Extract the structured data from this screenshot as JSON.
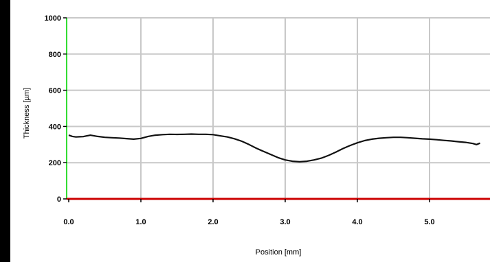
{
  "chart_data": {
    "type": "line",
    "title": "",
    "xlabel": "Position [mm]",
    "ylabel": "Thickness [µm]",
    "xlim": [
      -0.05,
      5.75
    ],
    "ylim": [
      0,
      1000
    ],
    "x_ticks": [
      0.0,
      1.0,
      2.0,
      3.0,
      4.0,
      5.0
    ],
    "x_tick_labels": [
      "0.0",
      "1.0",
      "2.0",
      "3.0",
      "4.0",
      "5.0"
    ],
    "y_ticks": [
      0,
      200,
      400,
      600,
      800,
      1000
    ],
    "y_tick_labels": [
      "0",
      "200",
      "400",
      "600",
      "800",
      "1000"
    ],
    "grid": true,
    "legend": "none",
    "colors": {
      "series": "#111111",
      "x_axis": "#cc0000",
      "y_axis": "#33dd33",
      "grid": "#c8c8c8",
      "plot_background": "#ffffff"
    },
    "series": [
      {
        "x": [
          0.0,
          0.05,
          0.1,
          0.15,
          0.2,
          0.25,
          0.3,
          0.4,
          0.5,
          0.6,
          0.7,
          0.8,
          0.9,
          1.0,
          1.1,
          1.2,
          1.3,
          1.4,
          1.5,
          1.6,
          1.7,
          1.8,
          1.9,
          2.0,
          2.1,
          2.2,
          2.3,
          2.4,
          2.5,
          2.6,
          2.7,
          2.8,
          2.9,
          3.0,
          3.1,
          3.2,
          3.3,
          3.4,
          3.5,
          3.6,
          3.7,
          3.8,
          3.9,
          4.0,
          4.1,
          4.2,
          4.3,
          4.4,
          4.5,
          4.6,
          4.7,
          4.8,
          4.9,
          5.0,
          5.1,
          5.2,
          5.3,
          5.4,
          5.5,
          5.6,
          5.65,
          5.7
        ],
        "values": [
          352,
          345,
          342,
          343,
          344,
          348,
          352,
          345,
          340,
          338,
          336,
          333,
          330,
          334,
          345,
          352,
          355,
          357,
          356,
          357,
          358,
          357,
          357,
          355,
          348,
          342,
          332,
          318,
          300,
          280,
          262,
          245,
          228,
          215,
          208,
          205,
          208,
          215,
          225,
          240,
          258,
          278,
          295,
          310,
          322,
          330,
          335,
          338,
          340,
          340,
          338,
          335,
          332,
          330,
          327,
          323,
          320,
          316,
          312,
          306,
          300,
          308
        ]
      }
    ]
  }
}
